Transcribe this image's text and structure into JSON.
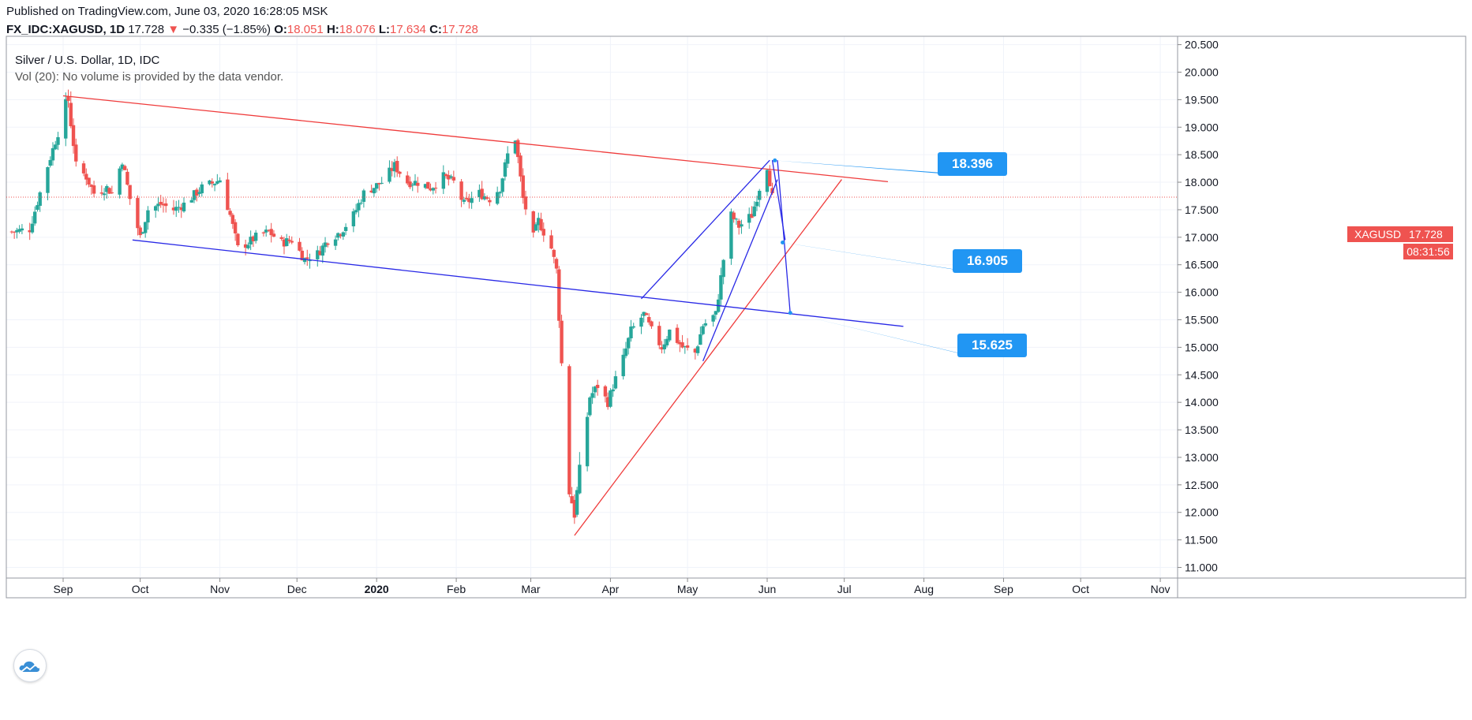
{
  "header": {
    "published": "Published on TradingView.com, June 03, 2020 16:28:05 MSK",
    "symbol": "FX_IDC:XAGUSD, 1D",
    "last": "17.728",
    "change_arrow": "▼",
    "change": "−0.335 (−1.85%)",
    "o_label": "O:",
    "o_value": "18.051",
    "h_label": "H:",
    "h_value": "18.076",
    "l_label": "L:",
    "l_value": "17.634",
    "c_label": "C:",
    "c_value": "17.728"
  },
  "legend": {
    "title": "Silver / U.S. Dollar, 1D, IDC",
    "volume": "Vol (20): No volume is provided by the data vendor."
  },
  "price_label": {
    "symbol": "XAGUSD",
    "value": "17.728",
    "timer": "08:31:56"
  },
  "callouts": {
    "top": "18.396",
    "mid": "16.905",
    "low": "15.625"
  },
  "logo_icon": "tradingview-cloud-icon",
  "colors": {
    "up": "#26a69a",
    "down": "#ef5350",
    "trend_red": "#ef3b3b",
    "trend_blue": "#2929e6",
    "callout": "#2196f3"
  },
  "chart_data": {
    "type": "candlestick",
    "title": "Silver / U.S. Dollar, 1D, IDC",
    "ylim": [
      11.0,
      20.5
    ],
    "y_ticks": [
      "20.500",
      "20.000",
      "19.500",
      "19.000",
      "18.500",
      "18.000",
      "17.500",
      "17.000",
      "16.500",
      "16.000",
      "15.500",
      "15.000",
      "14.500",
      "14.000",
      "13.500",
      "13.000",
      "12.500",
      "12.000",
      "11.500",
      "11.000"
    ],
    "x_ticks": [
      {
        "label": "Sep",
        "date": "2019-09-01"
      },
      {
        "label": "Oct",
        "date": "2019-10-01"
      },
      {
        "label": "Nov",
        "date": "2019-11-01"
      },
      {
        "label": "Dec",
        "date": "2019-12-01"
      },
      {
        "label": "2020",
        "date": "2020-01-01"
      },
      {
        "label": "Feb",
        "date": "2020-02-01"
      },
      {
        "label": "Mar",
        "date": "2020-03-01"
      },
      {
        "label": "Apr",
        "date": "2020-04-01"
      },
      {
        "label": "May",
        "date": "2020-05-01"
      },
      {
        "label": "Jun",
        "date": "2020-06-01"
      },
      {
        "label": "Jul",
        "date": "2020-07-01"
      },
      {
        "label": "Aug",
        "date": "2020-08-01"
      },
      {
        "label": "Sep",
        "date": "2020-09-01"
      },
      {
        "label": "Oct",
        "date": "2020-10-01"
      },
      {
        "label": "Nov",
        "date": "2020-11-01"
      }
    ],
    "x_range": [
      "2019-08-11",
      "2020-11-04"
    ],
    "last_price": 17.728,
    "close_path": [
      [
        "2019-08-12",
        17.1
      ],
      [
        "2019-08-19",
        17.15
      ],
      [
        "2019-08-26",
        18.3
      ],
      [
        "2019-09-03",
        19.5
      ],
      [
        "2019-09-06",
        18.3
      ],
      [
        "2019-09-10",
        18.1
      ],
      [
        "2019-09-13",
        17.8
      ],
      [
        "2019-09-18",
        17.9
      ],
      [
        "2019-09-20",
        17.8
      ],
      [
        "2019-09-24",
        18.4
      ],
      [
        "2019-09-27",
        17.7
      ],
      [
        "2019-10-01",
        17.0
      ],
      [
        "2019-10-04",
        17.5
      ],
      [
        "2019-10-09",
        17.6
      ],
      [
        "2019-10-14",
        17.5
      ],
      [
        "2019-10-18",
        17.6
      ],
      [
        "2019-10-25",
        17.9
      ],
      [
        "2019-10-30",
        18.0
      ],
      [
        "2019-11-01",
        18.05
      ],
      [
        "2019-11-05",
        17.4
      ],
      [
        "2019-11-08",
        16.8
      ],
      [
        "2019-11-12",
        16.9
      ],
      [
        "2019-11-15",
        17.0
      ],
      [
        "2019-11-20",
        17.1
      ],
      [
        "2019-11-25",
        16.9
      ],
      [
        "2019-11-29",
        16.95
      ],
      [
        "2019-12-04",
        16.6
      ],
      [
        "2019-12-09",
        16.7
      ],
      [
        "2019-12-13",
        16.95
      ],
      [
        "2019-12-18",
        17.1
      ],
      [
        "2019-12-23",
        17.4
      ],
      [
        "2019-12-27",
        17.8
      ],
      [
        "2020-01-03",
        18.0
      ],
      [
        "2020-01-08",
        18.3
      ],
      [
        "2020-01-13",
        18.0
      ],
      [
        "2020-01-17",
        18.0
      ],
      [
        "2020-01-22",
        17.9
      ],
      [
        "2020-01-27",
        18.1
      ],
      [
        "2020-01-31",
        18.0
      ],
      [
        "2020-02-04",
        17.6
      ],
      [
        "2020-02-10",
        17.8
      ],
      [
        "2020-02-14",
        17.7
      ],
      [
        "2020-02-18",
        17.9
      ],
      [
        "2020-02-21",
        18.5
      ],
      [
        "2020-02-24",
        18.8
      ],
      [
        "2020-02-27",
        17.7
      ],
      [
        "2020-03-02",
        17.0
      ],
      [
        "2020-03-04",
        17.3
      ],
      [
        "2020-03-09",
        16.8
      ],
      [
        "2020-03-11",
        16.4
      ],
      [
        "2020-03-13",
        14.7
      ],
      [
        "2020-03-16",
        12.4
      ],
      [
        "2020-03-18",
        12.0
      ],
      [
        "2020-03-20",
        12.7
      ],
      [
        "2020-03-24",
        14.1
      ],
      [
        "2020-03-27",
        14.3
      ],
      [
        "2020-03-31",
        14.0
      ],
      [
        "2020-04-02",
        14.3
      ],
      [
        "2020-04-06",
        14.8
      ],
      [
        "2020-04-09",
        15.3
      ],
      [
        "2020-04-14",
        15.6
      ],
      [
        "2020-04-17",
        15.3
      ],
      [
        "2020-04-21",
        15.0
      ],
      [
        "2020-04-24",
        15.3
      ],
      [
        "2020-04-29",
        15.0
      ],
      [
        "2020-05-04",
        14.9
      ],
      [
        "2020-05-07",
        15.4
      ],
      [
        "2020-05-12",
        15.6
      ],
      [
        "2020-05-15",
        16.6
      ],
      [
        "2020-05-18",
        17.4
      ],
      [
        "2020-05-21",
        17.2
      ],
      [
        "2020-05-26",
        17.4
      ],
      [
        "2020-05-29",
        17.9
      ],
      [
        "2020-06-01",
        18.3
      ],
      [
        "2020-06-03",
        17.73
      ]
    ],
    "trendlines": [
      {
        "color": "red",
        "from": [
          "2019-09-01",
          19.57
        ],
        "to": [
          "2020-07-18",
          18.01
        ]
      },
      {
        "color": "red",
        "from": [
          "2020-03-18",
          11.58
        ],
        "to": [
          "2020-06-30",
          18.05
        ]
      },
      {
        "color": "blue",
        "from": [
          "2019-09-28",
          16.95
        ],
        "to": [
          "2020-07-24",
          15.38
        ]
      },
      {
        "color": "blue",
        "from": [
          "2020-04-13",
          15.88
        ],
        "to": [
          "2020-06-02",
          18.4
        ]
      },
      {
        "color": "blue",
        "from": [
          "2020-05-07",
          14.75
        ],
        "to": [
          "2020-06-05",
          18.05
        ]
      },
      {
        "color": "blue",
        "from": [
          "2020-06-03",
          18.4
        ],
        "to": [
          "2020-06-08",
          16.95
        ]
      },
      {
        "color": "blue",
        "from": [
          "2020-06-05",
          18.4
        ],
        "to": [
          "2020-06-10",
          15.6
        ]
      }
    ],
    "annotations": [
      {
        "text": "18.396",
        "anchor": [
          "2020-06-04",
          18.396
        ]
      },
      {
        "text": "16.905",
        "anchor": [
          "2020-06-07",
          16.905
        ]
      },
      {
        "text": "15.625",
        "anchor": [
          "2020-06-10",
          15.625
        ]
      }
    ]
  }
}
